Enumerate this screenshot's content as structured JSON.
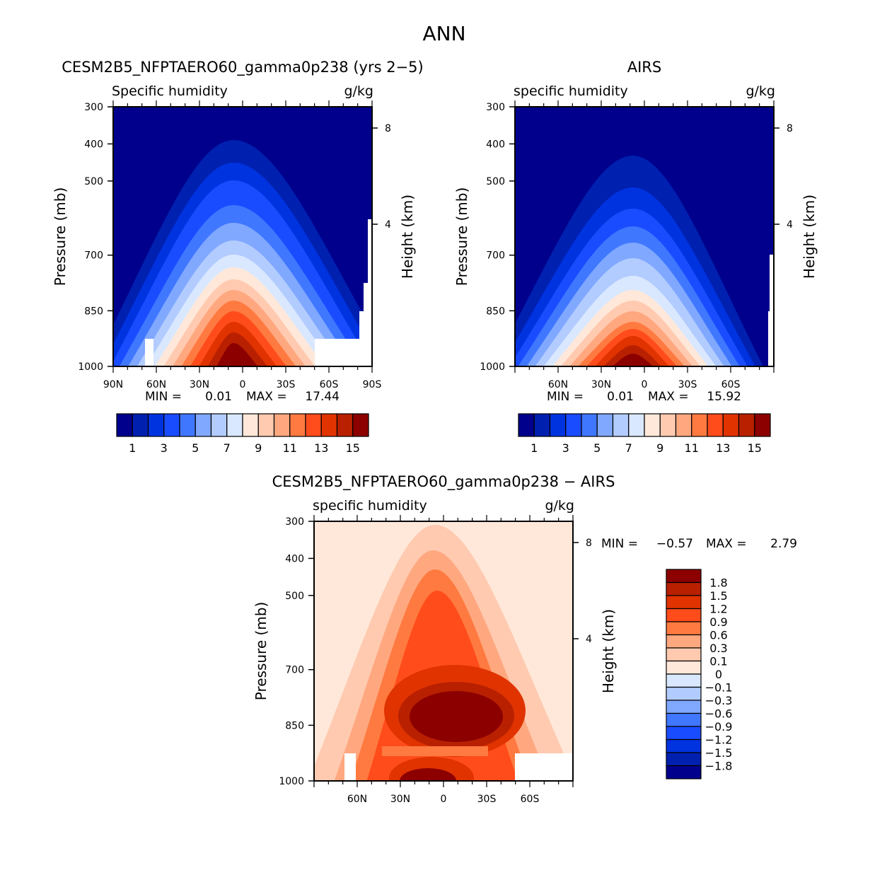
{
  "title": "ANN",
  "palette": [
    "#00008c",
    "#0020b0",
    "#0033e0",
    "#1a4cff",
    "#4077ff",
    "#80a8ff",
    "#b3ccff",
    "#d9e8ff",
    "#ffe8d9",
    "#ffcab0",
    "#ffa880",
    "#ff7a40",
    "#ff4c1a",
    "#e03300",
    "#b82000",
    "#8c0000"
  ],
  "chart_data": [
    {
      "type": "heatmap",
      "subtype": "filled-contour",
      "title": "CESM2B5_NFPTAERO60_gamma0p238 (yrs 2−5)",
      "left_string": "Specific humidity",
      "units": "g/kg",
      "ylabel": "Pressure (mb)",
      "y2label": "Height (km)",
      "yticks": [
        "300",
        "400",
        "500",
        "700",
        "850",
        "1000"
      ],
      "ylim": [
        300,
        1000
      ],
      "y2ticks": [
        "8",
        "4"
      ],
      "xticks": [
        "90N",
        "60N",
        "30N",
        "0",
        "30S",
        "60S",
        "90S"
      ],
      "xlim": [
        "90N",
        "90S"
      ],
      "min_label": "MIN =",
      "min": "0.01",
      "max_label": "MAX =",
      "max": "17.44",
      "contour_levels": [
        1,
        2,
        3,
        4,
        5,
        6,
        7,
        8,
        9,
        10,
        11,
        12,
        13,
        14,
        15
      ],
      "colorbar_labels": [
        "1",
        "3",
        "5",
        "7",
        "9",
        "11",
        "13",
        "15"
      ]
    },
    {
      "type": "heatmap",
      "subtype": "filled-contour",
      "title": "AIRS",
      "left_string": "specific humidity",
      "units": "g/kg",
      "ylabel": "Pressure (mb)",
      "y2label": "Height (km)",
      "yticks": [
        "300",
        "400",
        "500",
        "700",
        "850",
        "1000"
      ],
      "ylim": [
        300,
        1000
      ],
      "y2ticks": [
        "8",
        "4"
      ],
      "xticks": [
        "60N",
        "30N",
        "0",
        "30S",
        "60S"
      ],
      "min_label": "MIN =",
      "min": "0.01",
      "max_label": "MAX =",
      "max": "15.92",
      "contour_levels": [
        1,
        2,
        3,
        4,
        5,
        6,
        7,
        8,
        9,
        10,
        11,
        12,
        13,
        14,
        15
      ],
      "colorbar_labels": [
        "1",
        "3",
        "5",
        "7",
        "9",
        "11",
        "13",
        "15"
      ]
    },
    {
      "type": "heatmap",
      "subtype": "filled-contour",
      "title": "CESM2B5_NFPTAERO60_gamma0p238 − AIRS",
      "left_string": "specific humidity",
      "units": "g/kg",
      "ylabel": "Pressure (mb)",
      "y2label": "Height (km)",
      "yticks": [
        "300",
        "400",
        "500",
        "700",
        "850",
        "1000"
      ],
      "ylim": [
        300,
        1000
      ],
      "y2ticks": [
        "8",
        "4"
      ],
      "xticks": [
        "60N",
        "30N",
        "0",
        "30S",
        "60S"
      ],
      "min_label": "MIN =",
      "min": "−0.57",
      "max_label": "MAX =",
      "max": "2.79",
      "contour_levels": [
        -1.8,
        -1.5,
        -1.2,
        -0.9,
        -0.6,
        -0.3,
        -0.1,
        0,
        0.1,
        0.3,
        0.6,
        0.9,
        1.2,
        1.5,
        1.8
      ],
      "colorbar_labels": [
        "1.8",
        "1.5",
        "1.2",
        "0.9",
        "0.6",
        "0.3",
        "0.1",
        "0",
        "−0.1",
        "−0.3",
        "−0.6",
        "−0.9",
        "−1.2",
        "−1.5",
        "−1.8"
      ]
    }
  ]
}
